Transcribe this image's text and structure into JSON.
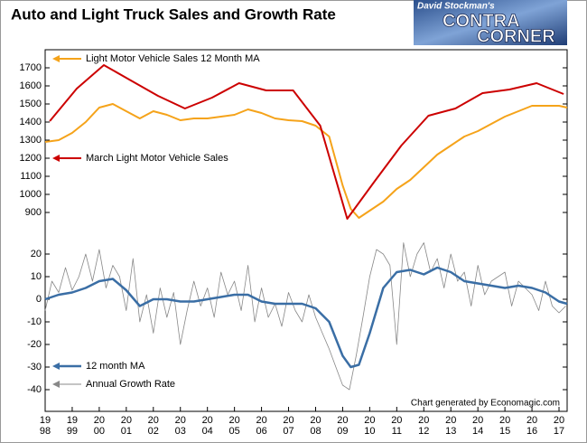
{
  "chart_data": [
    {
      "type": "line",
      "title": "Auto and Light Truck Sales and Growth Rate",
      "logo": {
        "byline": "David Stockman's",
        "word1": "CONTRA",
        "word2": "CORNER"
      },
      "xlim": [
        1998,
        2017.3
      ],
      "ylim": [
        840,
        1800
      ],
      "yticks": [
        900,
        1000,
        1100,
        1200,
        1300,
        1400,
        1500,
        1600,
        1700
      ],
      "series": [
        {
          "name": "Light Motor Vehicle Sales 12 Month MA",
          "color": "#f5a31a",
          "width": 2,
          "x": [
            1998,
            1998.5,
            1999,
            1999.5,
            2000,
            2000.5,
            2001,
            2001.5,
            2002,
            2002.5,
            2003,
            2003.5,
            2004,
            2004.5,
            2005,
            2005.5,
            2006,
            2006.5,
            2007,
            2007.5,
            2008,
            2008.5,
            2009,
            2009.3,
            2009.6,
            2010,
            2010.5,
            2011,
            2011.5,
            2012,
            2012.5,
            2013,
            2013.5,
            2014,
            2014.5,
            2015,
            2015.5,
            2016,
            2016.5,
            2017,
            2017.3
          ],
          "values": [
            1290,
            1300,
            1340,
            1400,
            1480,
            1500,
            1460,
            1420,
            1460,
            1440,
            1410,
            1420,
            1420,
            1430,
            1440,
            1470,
            1450,
            1420,
            1410,
            1405,
            1380,
            1320,
            1050,
            920,
            870,
            910,
            960,
            1030,
            1080,
            1150,
            1220,
            1270,
            1320,
            1350,
            1390,
            1430,
            1460,
            1490,
            1490,
            1490,
            1480
          ]
        },
        {
          "name": "March Light Motor Vehicle Sales",
          "color": "#cc0000",
          "width": 2,
          "x": [
            1998.17,
            1999.17,
            2000.17,
            2001.17,
            2002.17,
            2003.17,
            2004.17,
            2005.17,
            2006.17,
            2007.17,
            2008.17,
            2009.17,
            2010.17,
            2011.17,
            2012.17,
            2013.17,
            2014.17,
            2015.17,
            2016.17,
            2017.17
          ],
          "values": [
            1405,
            1585,
            1715,
            1630,
            1545,
            1475,
            1535,
            1615,
            1575,
            1575,
            1380,
            865,
            1070,
            1270,
            1435,
            1475,
            1560,
            1580,
            1615,
            1555
          ]
        }
      ]
    },
    {
      "type": "line",
      "credit": "Chart generated by Economagic.com",
      "xlim": [
        1998,
        2017.3
      ],
      "ylim": [
        -49.6,
        30
      ],
      "yticks": [
        20,
        10,
        0,
        -10,
        -20,
        -30,
        -40
      ],
      "xticks": [
        {
          "value": 1998,
          "label": "19\n98"
        },
        {
          "value": 1999,
          "label": "19\n99"
        },
        {
          "value": 2000,
          "label": "20\n00"
        },
        {
          "value": 2001,
          "label": "20\n01"
        },
        {
          "value": 2002,
          "label": "20\n02"
        },
        {
          "value": 2003,
          "label": "20\n03"
        },
        {
          "value": 2004,
          "label": "20\n04"
        },
        {
          "value": 2005,
          "label": "20\n05"
        },
        {
          "value": 2006,
          "label": "20\n06"
        },
        {
          "value": 2007,
          "label": "20\n07"
        },
        {
          "value": 2008,
          "label": "20\n08"
        },
        {
          "value": 2009,
          "label": "20\n09"
        },
        {
          "value": 2010,
          "label": "20\n10"
        },
        {
          "value": 2011,
          "label": "20\n11"
        },
        {
          "value": 2012,
          "label": "20\n12"
        },
        {
          "value": 2013,
          "label": "20\n13"
        },
        {
          "value": 2014,
          "label": "20\n14"
        },
        {
          "value": 2015,
          "label": "20\n15"
        },
        {
          "value": 2016,
          "label": "20\n16"
        },
        {
          "value": 2017,
          "label": "20\n17"
        }
      ],
      "series": [
        {
          "name": "Annual Growth Rate",
          "color": "#888888",
          "width": 0.8,
          "x": [
            1998,
            1998.25,
            1998.5,
            1998.75,
            1999,
            1999.25,
            1999.5,
            1999.75,
            2000,
            2000.25,
            2000.5,
            2000.75,
            2001,
            2001.25,
            2001.5,
            2001.75,
            2002,
            2002.25,
            2002.5,
            2002.75,
            2003,
            2003.25,
            2003.5,
            2003.75,
            2004,
            2004.25,
            2004.5,
            2004.75,
            2005,
            2005.25,
            2005.5,
            2005.75,
            2006,
            2006.25,
            2006.5,
            2006.75,
            2007,
            2007.25,
            2007.5,
            2007.75,
            2008,
            2008.25,
            2008.5,
            2008.75,
            2009,
            2009.25,
            2009.5,
            2009.75,
            2010,
            2010.25,
            2010.5,
            2010.75,
            2011,
            2011.25,
            2011.5,
            2011.75,
            2012,
            2012.25,
            2012.5,
            2012.75,
            2013,
            2013.25,
            2013.5,
            2013.75,
            2014,
            2014.25,
            2014.5,
            2014.75,
            2015,
            2015.25,
            2015.5,
            2015.75,
            2016,
            2016.25,
            2016.5,
            2016.75,
            2017,
            2017.25
          ],
          "values": [
            -5,
            8,
            3,
            14,
            4,
            10,
            20,
            8,
            22,
            5,
            15,
            10,
            -5,
            18,
            -10,
            2,
            -15,
            5,
            -8,
            3,
            -20,
            -5,
            8,
            -3,
            5,
            -8,
            12,
            2,
            8,
            -5,
            15,
            -10,
            5,
            -8,
            -2,
            -12,
            3,
            -5,
            -10,
            2,
            -8,
            -15,
            -22,
            -30,
            -38,
            -40,
            -25,
            -8,
            10,
            22,
            20,
            15,
            -20,
            25,
            10,
            20,
            25,
            12,
            18,
            5,
            20,
            8,
            12,
            -3,
            15,
            2,
            8,
            10,
            12,
            -3,
            8,
            5,
            2,
            -5,
            8,
            -3,
            -6,
            -3
          ]
        },
        {
          "name": "12 month MA",
          "color": "#3a6ea5",
          "width": 2.5,
          "x": [
            1998,
            1998.5,
            1999,
            1999.5,
            2000,
            2000.5,
            2001,
            2001.5,
            2002,
            2002.5,
            2003,
            2003.5,
            2004,
            2004.5,
            2005,
            2005.5,
            2006,
            2006.5,
            2007,
            2007.5,
            2008,
            2008.5,
            2009,
            2009.3,
            2009.6,
            2010,
            2010.5,
            2011,
            2011.5,
            2012,
            2012.5,
            2013,
            2013.5,
            2014,
            2014.5,
            2015,
            2015.5,
            2016,
            2016.5,
            2017,
            2017.3
          ],
          "values": [
            0,
            2,
            3,
            5,
            8,
            9,
            4,
            -3,
            0,
            0,
            -1,
            -1,
            0,
            1,
            2,
            2,
            -1,
            -2,
            -2,
            -2,
            -4,
            -10,
            -25,
            -30,
            -29,
            -15,
            5,
            12,
            13,
            11,
            14,
            12,
            8,
            7,
            6,
            5,
            6,
            5,
            3,
            -1,
            -2
          ]
        }
      ]
    }
  ]
}
